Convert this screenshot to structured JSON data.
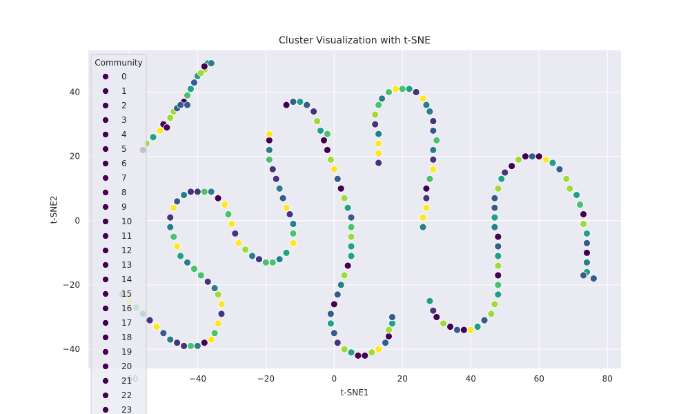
{
  "chart_data": {
    "type": "scatter",
    "title": "Cluster Visualization with t-SNE",
    "xlabel": "t-SNE1",
    "ylabel": "t-SNE2",
    "xlim": [
      -72,
      84
    ],
    "ylim": [
      -46,
      53
    ],
    "xticks": [
      -60,
      -40,
      -20,
      0,
      20,
      40,
      60,
      80
    ],
    "yticks": [
      -40,
      -20,
      0,
      20,
      40
    ],
    "grid": true,
    "legend": {
      "title": "Community",
      "placement": "upper-left",
      "labels": [
        "0",
        "1",
        "2",
        "3",
        "4",
        "5",
        "6",
        "7",
        "8",
        "9",
        "10",
        "11",
        "12",
        "13",
        "14",
        "15",
        "16",
        "17",
        "18",
        "19",
        "20",
        "21",
        "22",
        "23"
      ]
    },
    "colors": {
      "background": "#eaeaf2",
      "grid": "#ffffff",
      "marker_edge": "#ffffff",
      "legend_marker": "#440154"
    },
    "palette": [
      "#440154",
      "#46337e",
      "#365c8d",
      "#277f8e",
      "#1fa187",
      "#4ac16d",
      "#a0da39",
      "#fde725"
    ],
    "series": [
      {
        "points": [
          [
            -56,
            22
          ],
          [
            -55,
            24
          ],
          [
            -53,
            26
          ],
          [
            -51,
            28
          ],
          [
            -50,
            30
          ],
          [
            -48,
            32
          ],
          [
            -47,
            34
          ],
          [
            -46,
            35
          ],
          [
            -44,
            37
          ],
          [
            -43,
            39
          ],
          [
            -42,
            41
          ],
          [
            -41,
            43
          ],
          [
            -40,
            45
          ],
          [
            -38,
            47
          ],
          [
            -37,
            49
          ],
          [
            -36,
            49
          ],
          [
            -38,
            48
          ],
          [
            -39,
            46
          ],
          [
            -43,
            36
          ],
          [
            -45,
            36
          ],
          [
            -49,
            29
          ]
        ]
      },
      {
        "points": [
          [
            -62,
            -23
          ],
          [
            -60,
            -25
          ],
          [
            -58,
            -27
          ],
          [
            -56,
            -29
          ],
          [
            -54,
            -31
          ],
          [
            -52,
            -33
          ],
          [
            -50,
            -35
          ],
          [
            -48,
            -37
          ],
          [
            -46,
            -38
          ],
          [
            -44,
            -39
          ],
          [
            -42,
            -39
          ],
          [
            -40,
            -39
          ],
          [
            -38,
            -38
          ],
          [
            -36,
            -37
          ],
          [
            -35,
            -35
          ],
          [
            -34,
            -32
          ],
          [
            -33,
            -29
          ],
          [
            -33,
            -26
          ],
          [
            -34,
            -23
          ],
          [
            -35,
            -21
          ],
          [
            -37,
            -19
          ],
          [
            -39,
            -17
          ],
          [
            -41,
            -15
          ],
          [
            -43,
            -13
          ],
          [
            -45,
            -11
          ],
          [
            -46,
            -8
          ],
          [
            -47,
            -5
          ],
          [
            -48,
            -2
          ],
          [
            -48,
            1
          ],
          [
            -47,
            4
          ],
          [
            -46,
            6
          ],
          [
            -44,
            8
          ],
          [
            -42,
            9
          ],
          [
            -40,
            9
          ],
          [
            -38,
            9
          ],
          [
            -36,
            9
          ],
          [
            -34,
            7
          ],
          [
            -32,
            5
          ],
          [
            -31,
            2
          ],
          [
            -30,
            -1
          ],
          [
            -29,
            -4
          ],
          [
            -28,
            -7
          ],
          [
            -26,
            -9
          ],
          [
            -24,
            -11
          ],
          [
            -22,
            -12
          ],
          [
            -20,
            -13
          ],
          [
            -18,
            -13
          ],
          [
            -16,
            -12
          ],
          [
            -14,
            -10
          ],
          [
            -12,
            -7
          ],
          [
            -12,
            -4
          ],
          [
            -12,
            -1
          ],
          [
            -13,
            2
          ],
          [
            -14,
            4
          ],
          [
            -15,
            7
          ],
          [
            -16,
            10
          ],
          [
            -17,
            13
          ],
          [
            -18,
            16
          ],
          [
            -19,
            19
          ],
          [
            -19,
            22
          ],
          [
            -19,
            25
          ],
          [
            -19,
            27
          ]
        ]
      },
      {
        "points": [
          [
            -14,
            36
          ],
          [
            -12,
            37
          ],
          [
            -10,
            37
          ],
          [
            -8,
            36
          ],
          [
            -6,
            34
          ],
          [
            -5,
            31
          ],
          [
            -4,
            28
          ],
          [
            -3,
            25
          ],
          [
            -2,
            22
          ],
          [
            -1,
            19
          ],
          [
            0,
            16
          ],
          [
            1,
            13
          ],
          [
            2,
            10
          ],
          [
            3,
            7
          ],
          [
            4,
            4
          ],
          [
            5,
            1
          ],
          [
            5,
            -2
          ],
          [
            5,
            -5
          ],
          [
            5,
            -8
          ],
          [
            5,
            -11
          ],
          [
            4,
            -14
          ],
          [
            3,
            -17
          ],
          [
            2,
            -20
          ],
          [
            1,
            -23
          ],
          [
            0,
            -26
          ],
          [
            -1,
            -29
          ],
          [
            -1,
            -32
          ],
          [
            0,
            -35
          ],
          [
            1,
            -38
          ],
          [
            3,
            -40
          ],
          [
            5,
            -41
          ],
          [
            7,
            -42
          ],
          [
            9,
            -42
          ],
          [
            11,
            -41
          ],
          [
            13,
            -40
          ],
          [
            15,
            -38
          ],
          [
            16,
            -36
          ],
          [
            16,
            -34
          ],
          [
            17,
            -32
          ],
          [
            17,
            -30
          ],
          [
            -2,
            27
          ]
        ]
      },
      {
        "points": [
          [
            13,
            18
          ],
          [
            13,
            21
          ],
          [
            13,
            24
          ],
          [
            13,
            27
          ],
          [
            12,
            30
          ],
          [
            12,
            33
          ],
          [
            13,
            36
          ],
          [
            14,
            38
          ],
          [
            16,
            40
          ],
          [
            18,
            41
          ],
          [
            20,
            41
          ],
          [
            22,
            41
          ],
          [
            24,
            40
          ],
          [
            26,
            38
          ],
          [
            27,
            36
          ],
          [
            28,
            34
          ],
          [
            29,
            31
          ],
          [
            29,
            28
          ],
          [
            30,
            25
          ],
          [
            29,
            22
          ],
          [
            29,
            19
          ],
          [
            29,
            16
          ],
          [
            28,
            13
          ],
          [
            27,
            10
          ],
          [
            27,
            7
          ],
          [
            27,
            4
          ],
          [
            26,
            1
          ],
          [
            26,
            -2
          ]
        ]
      },
      {
        "points": [
          [
            28,
            -25
          ],
          [
            29,
            -28
          ],
          [
            30,
            -30
          ],
          [
            32,
            -32
          ],
          [
            34,
            -33
          ],
          [
            36,
            -34
          ],
          [
            38,
            -34
          ],
          [
            40,
            -34
          ],
          [
            42,
            -33
          ],
          [
            44,
            -31
          ],
          [
            46,
            -29
          ],
          [
            47,
            -26
          ],
          [
            48,
            -23
          ],
          [
            48,
            -20
          ],
          [
            48,
            -17
          ],
          [
            48,
            -14
          ],
          [
            48,
            -11
          ],
          [
            48,
            -8
          ],
          [
            48,
            -5
          ],
          [
            47,
            -2
          ],
          [
            47,
            1
          ],
          [
            47,
            4
          ],
          [
            47,
            7
          ],
          [
            48,
            10
          ],
          [
            49,
            13
          ],
          [
            50,
            15
          ],
          [
            52,
            17
          ],
          [
            54,
            19
          ],
          [
            56,
            20
          ],
          [
            58,
            20
          ],
          [
            60,
            20
          ],
          [
            62,
            19
          ],
          [
            64,
            18
          ],
          [
            66,
            16
          ],
          [
            68,
            13
          ],
          [
            69,
            10
          ],
          [
            71,
            8
          ],
          [
            72,
            5
          ],
          [
            73,
            2
          ],
          [
            73,
            -1
          ],
          [
            74,
            -4
          ],
          [
            74,
            -7
          ],
          [
            74,
            -10
          ],
          [
            74,
            -13
          ],
          [
            74,
            -16
          ],
          [
            76,
            -18
          ],
          [
            73,
            -17
          ]
        ]
      }
    ]
  }
}
